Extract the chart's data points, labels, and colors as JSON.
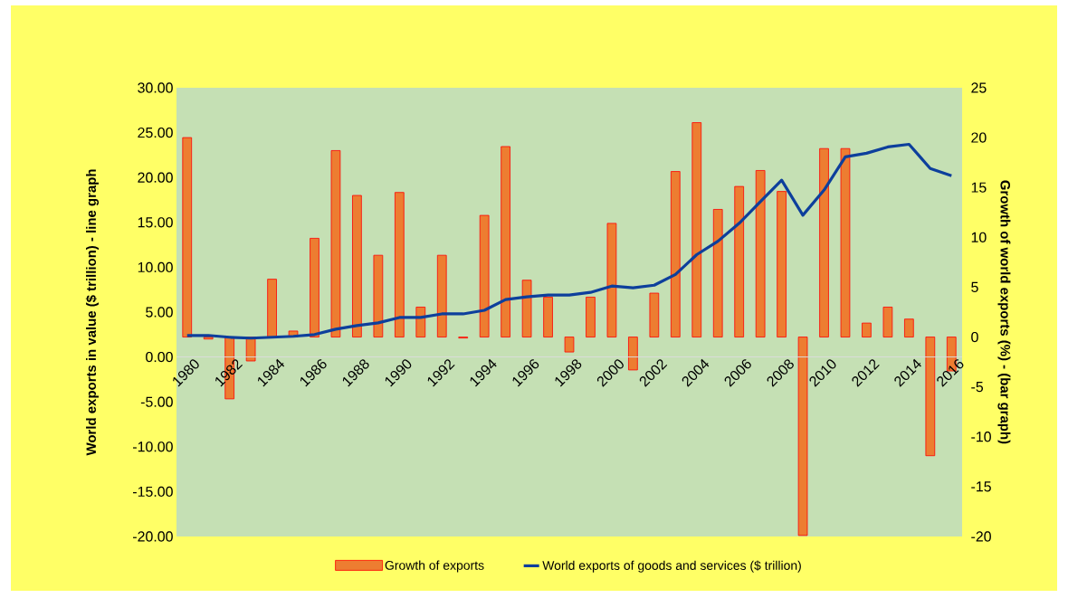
{
  "chart_data": {
    "type": "bar",
    "ylabel": "World exports in value ($ trillion) - line graph",
    "y2label": "Growth of world exports (%) - (bar graph)",
    "x": [
      1980,
      1981,
      1982,
      1983,
      1984,
      1985,
      1986,
      1987,
      1988,
      1989,
      1990,
      1991,
      1992,
      1993,
      1994,
      1995,
      1996,
      1997,
      1998,
      1999,
      2000,
      2001,
      2002,
      2003,
      2004,
      2005,
      2006,
      2007,
      2008,
      2009,
      2010,
      2011,
      2012,
      2013,
      2014,
      2015,
      2016
    ],
    "xlim": [
      1979.5,
      2016.5
    ],
    "xticks": [
      1980,
      1982,
      1984,
      1986,
      1988,
      1990,
      1992,
      1994,
      1996,
      1998,
      2000,
      2002,
      2004,
      2006,
      2008,
      2010,
      2012,
      2014,
      2016
    ],
    "ylim": [
      -20,
      30
    ],
    "yticks": [
      {
        "value": -20,
        "label": "-20.00"
      },
      {
        "value": -15,
        "label": "-15.00"
      },
      {
        "value": -10,
        "label": "-10.00"
      },
      {
        "value": -5,
        "label": "-5.00"
      },
      {
        "value": 0,
        "label": "0.00"
      },
      {
        "value": 5,
        "label": "5.00"
      },
      {
        "value": 10,
        "label": "10.00"
      },
      {
        "value": 15,
        "label": "15.00"
      },
      {
        "value": 20,
        "label": "20.00"
      },
      {
        "value": 25,
        "label": "25.00"
      },
      {
        "value": 30,
        "label": "30.00"
      }
    ],
    "y2lim": [
      -20,
      25
    ],
    "y2ticks": [
      -20,
      -15,
      -10,
      -5,
      0,
      5,
      10,
      15,
      20,
      25
    ],
    "legend": "bottom",
    "series": [
      {
        "name": "Growth of exports",
        "axis": "y2",
        "color": "#ed7d31",
        "values": [
          20.0,
          -0.2,
          -6.2,
          -2.4,
          5.8,
          0.6,
          9.9,
          18.7,
          14.2,
          8.2,
          14.5,
          3.0,
          8.2,
          -0.1,
          12.2,
          19.1,
          5.7,
          4.0,
          -1.5,
          4.0,
          11.4,
          -3.3,
          4.4,
          16.6,
          21.5,
          12.8,
          15.1,
          16.7,
          14.6,
          -19.9,
          18.9,
          18.9,
          1.4,
          3.0,
          1.8,
          -11.9,
          -3.4
        ]
      },
      {
        "name": "World exports of goods and services ($ trillion)",
        "type": "line",
        "axis": "y",
        "color": "#0d3f9c",
        "values": [
          2.4,
          2.4,
          2.2,
          2.1,
          2.2,
          2.3,
          2.5,
          3.1,
          3.5,
          3.8,
          4.4,
          4.4,
          4.8,
          4.8,
          5.2,
          6.4,
          6.7,
          6.9,
          6.9,
          7.2,
          7.9,
          7.7,
          8.0,
          9.2,
          11.4,
          12.9,
          14.9,
          17.3,
          19.7,
          15.8,
          18.6,
          22.3,
          22.7,
          23.4,
          23.7,
          21.0,
          20.2
        ]
      }
    ]
  }
}
